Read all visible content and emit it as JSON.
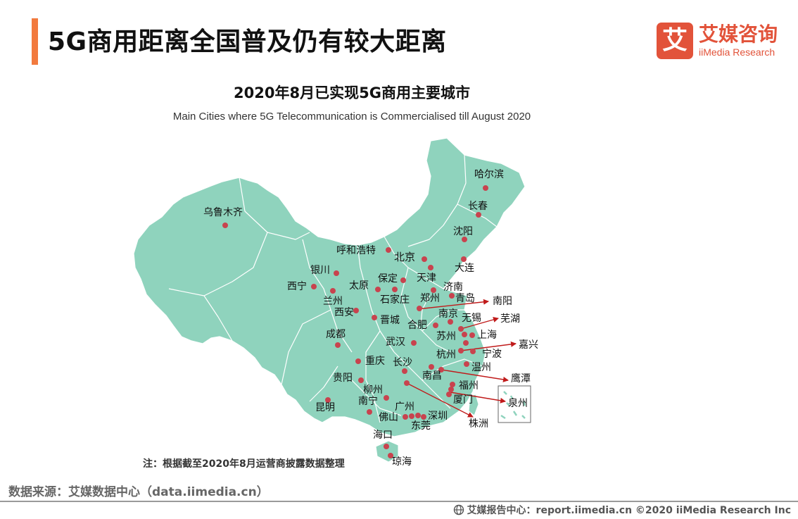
{
  "header": {
    "title": "5G商用距离全国普及仍有较大距离",
    "logo_mark": "艾",
    "logo_cn": "艾媒咨询",
    "logo_en": "iiMedia Research"
  },
  "map": {
    "title_cn": "2020年8月已实现5G商用主要城市",
    "title_en": "Main Cities where 5G Telecommunication is Commercialised till August 2020",
    "fill_color": "#8fd3bd",
    "border_color": "#ffffff",
    "dot_color": "#c8434e",
    "arrow_color": "#c01b1b",
    "cities": {
      "harbin": "哈尔滨",
      "changchun": "长春",
      "shenyang": "沈阳",
      "dalian": "大连",
      "urumqi": "乌鲁木齐",
      "hohhot": "呼和浩特",
      "beijing": "北京",
      "tianjin": "天津",
      "yinchuan": "银川",
      "baoding": "保定",
      "xining": "西宁",
      "taiyuan": "太原",
      "jinan": "济南",
      "lanzhou": "兰州",
      "shijiazhuang": "石家庄",
      "zhengzhou": "郑州",
      "qingdao": "青岛",
      "nanyang": "南阳",
      "xian": "西安",
      "nanjing": "南京",
      "wuhu": "芜湖",
      "jincheng": "晋城",
      "hefei": "合肥",
      "wuxi": "无锡",
      "chengdu": "成都",
      "suzhou": "苏州",
      "shanghai": "上海",
      "wuhan": "武汉",
      "jiaxing": "嘉兴",
      "hangzhou": "杭州",
      "ningbo": "宁波",
      "chongqing": "重庆",
      "changsha": "长沙",
      "wenzhou": "温州",
      "nanchang": "南昌",
      "yingtan": "鹰潭",
      "guiyang": "贵阳",
      "fuzhou": "福州",
      "liuzhou": "柳州",
      "xiamen": "厦门",
      "quanzhou": "泉州",
      "nanning": "南宁",
      "guangzhou": "广州",
      "kunming": "昆明",
      "foshan": "佛山",
      "shenzhen": "深圳",
      "dongguan": "东莞",
      "zhuzhou": "株洲",
      "haikou": "海口",
      "qionghai": "琼海"
    }
  },
  "note": "注：根据截至2020年8月运营商披露数据整理",
  "source": "数据来源：艾媒数据中心（data.iimedia.cn）",
  "footer": "艾媒报告中心：report.iimedia.cn   ©2020  iiMedia Research  Inc"
}
